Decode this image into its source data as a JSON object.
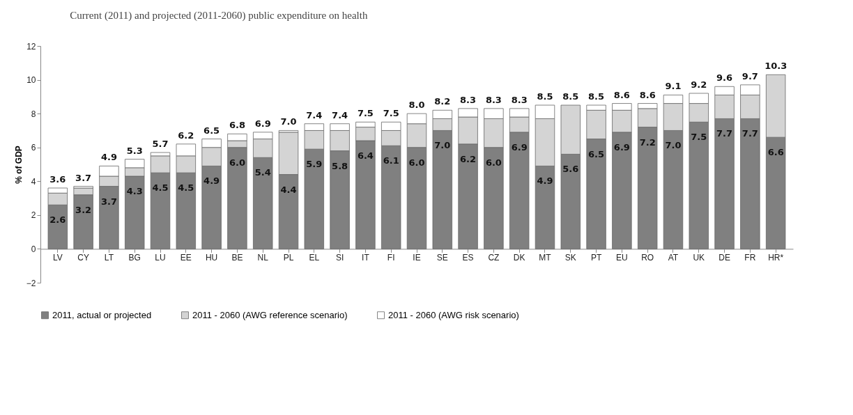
{
  "chart_data": {
    "type": "bar",
    "stacked": true,
    "title": "Current (2011) and projected (2011-2060) public expenditure on health",
    "ylabel": "% of GDP",
    "categories": [
      "LV",
      "CY",
      "LT",
      "BG",
      "LU",
      "EE",
      "HU",
      "BE",
      "NL",
      "PL",
      "EL",
      "SI",
      "IT",
      "FI",
      "IE",
      "SE",
      "ES",
      "CZ",
      "DK",
      "MT",
      "SK",
      "PT",
      "EU",
      "RO",
      "AT",
      "UK",
      "DE",
      "FR",
      "HR*"
    ],
    "series": [
      {
        "name": "2011, actual or projected",
        "color": "#808080",
        "values": [
          2.6,
          3.2,
          3.7,
          4.3,
          4.5,
          4.5,
          4.9,
          6.0,
          5.4,
          4.4,
          5.9,
          5.8,
          6.4,
          6.1,
          6.0,
          7.0,
          6.2,
          6.0,
          6.9,
          4.9,
          5.6,
          6.5,
          6.9,
          7.2,
          7.0,
          7.5,
          7.7,
          7.7,
          6.6
        ],
        "value_labels": [
          "2.6",
          "3.2",
          "3.7",
          "4.3",
          "4.5",
          "4.5",
          "4.9",
          "6.0",
          "5.4",
          "4.4",
          "5.9",
          "5.8",
          "6.4",
          "6.1",
          "6.0",
          "7.0",
          "6.2",
          "6.0",
          "6.9",
          "4.9",
          "5.6",
          "6.5",
          "6.9",
          "7.2",
          "7.0",
          "7.5",
          "7.7",
          "7.7",
          "6.6"
        ]
      },
      {
        "name": "2011 - 2060 (AWG reference scenario)",
        "color": "#d4d4d4",
        "values": [
          0.7,
          0.4,
          0.6,
          0.5,
          1.0,
          1.0,
          1.1,
          0.4,
          1.1,
          2.5,
          1.1,
          1.2,
          0.8,
          0.9,
          1.4,
          0.7,
          1.6,
          1.7,
          0.9,
          2.8,
          2.9,
          1.7,
          1.3,
          1.1,
          1.6,
          1.1,
          1.4,
          1.4,
          3.7
        ]
      },
      {
        "name": "2011 - 2060 (AWG risk scenario)",
        "color": "#ffffff",
        "values": [
          0.3,
          0.1,
          0.6,
          0.5,
          0.2,
          0.7,
          0.5,
          0.4,
          0.4,
          0.1,
          0.4,
          0.4,
          0.3,
          0.5,
          0.6,
          0.5,
          0.5,
          0.6,
          0.5,
          0.8,
          0.0,
          0.3,
          0.4,
          0.3,
          0.5,
          0.6,
          0.5,
          0.6,
          0.0
        ]
      }
    ],
    "totals": [
      "3.6",
      "3.7",
      "4.9",
      "5.3",
      "5.7",
      "6.2",
      "6.5",
      "6.8",
      "6.9",
      "7.0",
      "7.4",
      "7.4",
      "7.5",
      "7.5",
      "8.0",
      "8.2",
      "8.3",
      "8.3",
      "8.3",
      "8.5",
      "8.5",
      "8.5",
      "8.6",
      "8.6",
      "9.1",
      "9.2",
      "9.6",
      "9.7",
      "10.3"
    ],
    "ylim": [
      -2,
      12
    ],
    "yticks": [
      -2,
      0,
      2,
      4,
      6,
      8,
      10,
      12
    ],
    "grid": false,
    "legend": "bottom"
  }
}
